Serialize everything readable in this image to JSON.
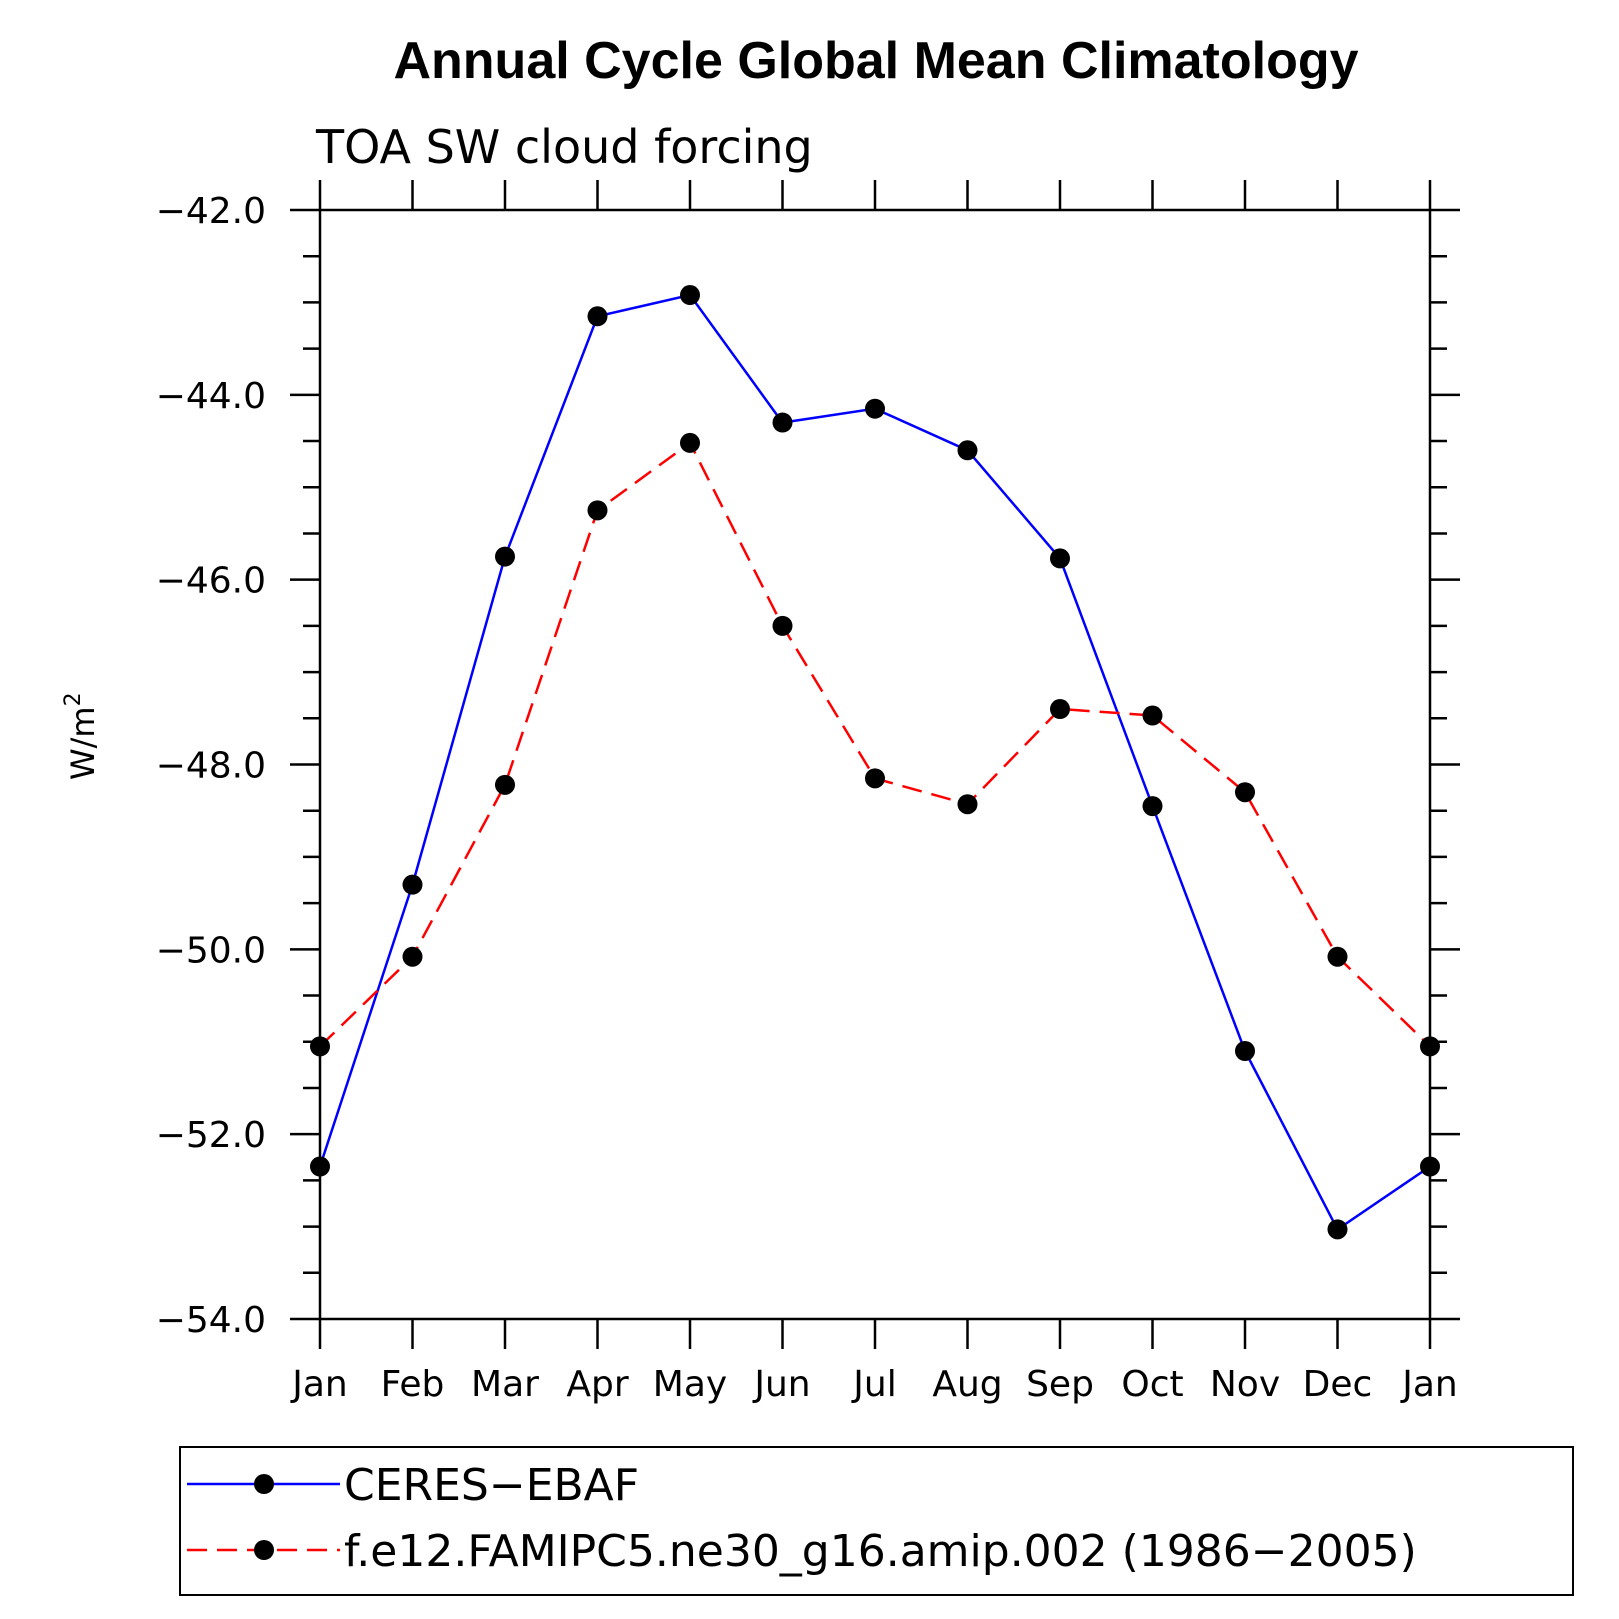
{
  "chart_data": {
    "type": "line",
    "title": "Annual Cycle Global Mean Climatology",
    "subtitle": "TOA SW cloud forcing",
    "ylabel": "W/m",
    "ylabel_superscript": "2",
    "categories": [
      "Jan",
      "Feb",
      "Mar",
      "Apr",
      "May",
      "Jun",
      "Jul",
      "Aug",
      "Sep",
      "Oct",
      "Nov",
      "Dec",
      "Jan"
    ],
    "ylim": [
      -54.0,
      -42.0
    ],
    "yticks": [
      -42.0,
      -44.0,
      -46.0,
      -48.0,
      -50.0,
      -52.0,
      -54.0
    ],
    "ytick_labels": [
      "−42.0",
      "−44.0",
      "−46.0",
      "−48.0",
      "−50.0",
      "−52.0",
      "−54.0"
    ],
    "grid": false,
    "legend_position": "bottom",
    "series": [
      {
        "name": "CERES−EBAF",
        "color": "#0000ff",
        "dash": "solid",
        "marker": "filled-circle",
        "values": [
          -52.35,
          -49.3,
          -45.75,
          -43.15,
          -42.92,
          -44.3,
          -44.15,
          -44.6,
          -45.77,
          -48.45,
          -51.1,
          -53.03,
          -52.35
        ]
      },
      {
        "name": "f.e12.FAMIPC5.ne30_g16.amip.002 (1986−2005)",
        "color": "#ff0000",
        "dash": "dashed",
        "marker": "filled-circle",
        "values": [
          -51.05,
          -50.08,
          -48.22,
          -45.25,
          -44.52,
          -46.5,
          -48.15,
          -48.43,
          -47.4,
          -47.47,
          -48.3,
          -50.08,
          -51.05
        ]
      }
    ]
  }
}
